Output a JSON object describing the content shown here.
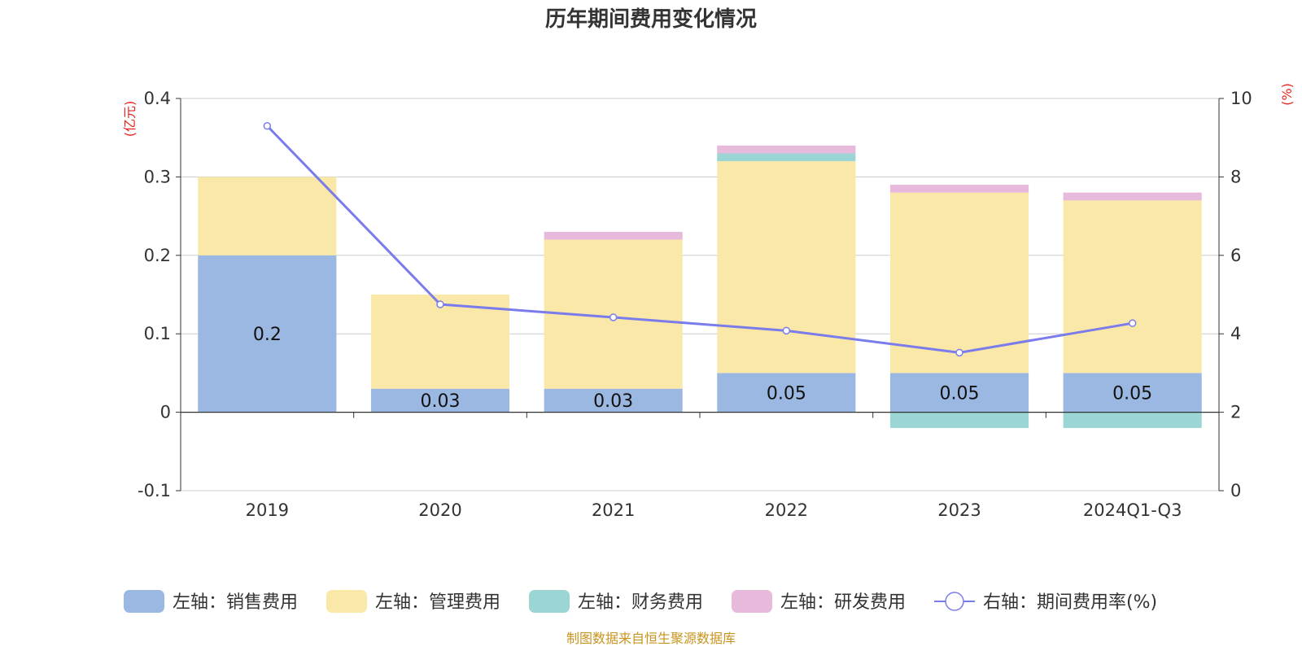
{
  "chart_data": {
    "type": "bar",
    "title": "历年期间费用变化情况",
    "categories": [
      "2019",
      "2020",
      "2021",
      "2022",
      "2023",
      "2024Q1-Q3"
    ],
    "left_axis": {
      "unit": "(亿元)",
      "ylim": [
        -0.1,
        0.4
      ],
      "ticks": [
        0.4,
        0.3,
        0.2,
        0.1,
        0,
        -0.1
      ],
      "tick_labels": [
        "0.4",
        "0.3",
        "0.2",
        "0.1",
        "0",
        "-0.1"
      ]
    },
    "right_axis": {
      "unit": "(%)",
      "ylim": [
        0,
        10
      ],
      "ticks": [
        10,
        8,
        6,
        4,
        2,
        0
      ],
      "tick_labels": [
        "10",
        "8",
        "6",
        "4",
        "2",
        "0"
      ]
    },
    "series": [
      {
        "name": "左轴：销售费用",
        "axis": "left",
        "type": "bar",
        "color": "#9bb8e2",
        "values": [
          0.2,
          0.03,
          0.03,
          0.05,
          0.05,
          0.05
        ],
        "labels": [
          "0.2",
          "0.03",
          "0.03",
          "0.05",
          "0.05",
          "0.05"
        ]
      },
      {
        "name": "左轴：管理费用",
        "axis": "left",
        "type": "bar",
        "color": "#f9e8a8",
        "values": [
          0.1,
          0.12,
          0.19,
          0.27,
          0.23,
          0.22
        ]
      },
      {
        "name": "左轴：财务费用",
        "axis": "left",
        "type": "bar",
        "color": "#9bd5d4",
        "values": [
          0,
          0,
          0,
          0.01,
          -0.02,
          -0.02
        ]
      },
      {
        "name": "左轴：研发费用",
        "axis": "left",
        "type": "bar",
        "color": "#e7b9db",
        "values": [
          0,
          0,
          0.01,
          0.01,
          0.01,
          0.01
        ]
      },
      {
        "name": "右轴：期间费用率(%)",
        "axis": "right",
        "type": "line",
        "color": "#7b7cec",
        "values": [
          9.3,
          4.75,
          4.42,
          4.08,
          3.52,
          4.27
        ]
      }
    ],
    "grid": true,
    "legend_position": "bottom"
  },
  "source_note": "制图数据来自恒生聚源数据库"
}
